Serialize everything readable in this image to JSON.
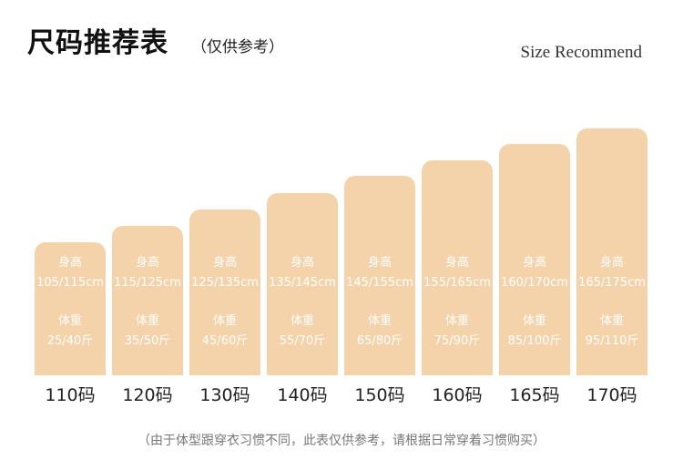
{
  "header": {
    "title": "尺码推荐表",
    "subtitle": "（仅供参考）",
    "en_title": "Size Recommend"
  },
  "table_labels": {
    "height": "身高",
    "weight": "体重"
  },
  "sizes": [
    {
      "size": "110码",
      "height": "105/115cm",
      "weight": "25/40斤"
    },
    {
      "size": "120码",
      "height": "115/125cm",
      "weight": "35/50斤"
    },
    {
      "size": "130码",
      "height": "125/135cm",
      "weight": "45/60斤"
    },
    {
      "size": "140码",
      "height": "135/145cm",
      "weight": "55/70斤"
    },
    {
      "size": "150码",
      "height": "145/155cm",
      "weight": "65/80斤"
    },
    {
      "size": "160码",
      "height": "155/165cm",
      "weight": "75/90斤"
    },
    {
      "size": "165码",
      "height": "160/170cm",
      "weight": "85/100斤"
    },
    {
      "size": "170码",
      "height": "165/175cm",
      "weight": "95/110斤"
    }
  ],
  "footnote": "（由于体型跟穿衣习惯不同，此表仅供参考，请根据日常穿着习惯购买）",
  "colors": {
    "bar": "#f4d3ab",
    "bar_text": "#ffffff"
  }
}
